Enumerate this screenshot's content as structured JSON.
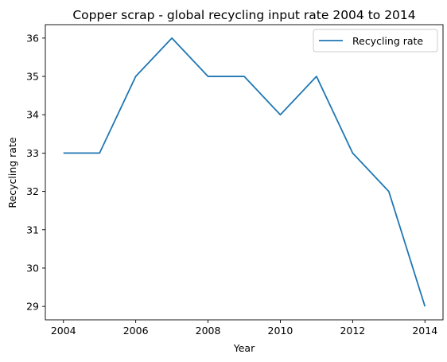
{
  "chart_data": {
    "type": "line",
    "title": "Copper scrap - global recycling input rate 2004 to 2014",
    "xlabel": "Year",
    "ylabel": "Recycling rate",
    "x": [
      2004,
      2005,
      2006,
      2007,
      2008,
      2009,
      2010,
      2011,
      2012,
      2013,
      2014
    ],
    "series": [
      {
        "name": "Recycling rate",
        "color": "#1f77b4",
        "values": [
          33,
          33,
          35,
          36,
          35,
          35,
          34,
          35,
          33,
          32,
          29
        ]
      }
    ],
    "xlim": [
      2003.5,
      2014.5
    ],
    "ylim": [
      28.65,
      36.35
    ],
    "xticks": [
      2004,
      2006,
      2008,
      2010,
      2012,
      2014
    ],
    "yticks": [
      29,
      30,
      31,
      32,
      33,
      34,
      35,
      36
    ],
    "grid": false,
    "legend_position": "top-right"
  }
}
